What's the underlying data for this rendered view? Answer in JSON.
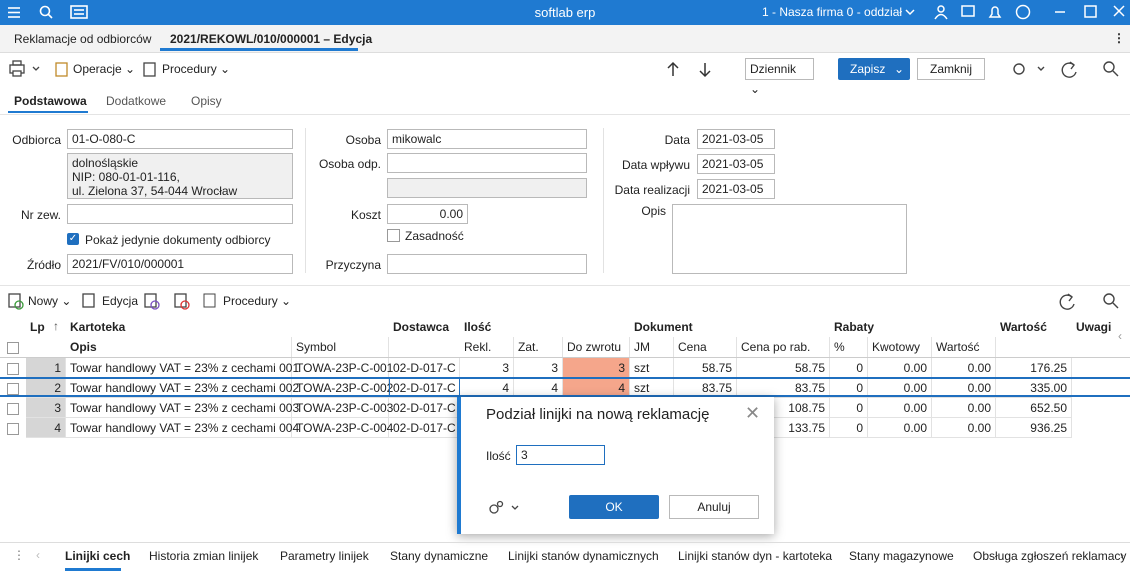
{
  "titlebar": {
    "app": "softlab erp",
    "company": "1 - Nasza firma 0 - oddział"
  },
  "doc_tabs": [
    "Reklamacje od odbiorców",
    "2021/REKOWL/010/000001 – Edycja"
  ],
  "toolbar": {
    "operations": "Operacje",
    "procedures": "Procedury",
    "journal": "Dziennik",
    "save": "Zapisz",
    "close": "Zamknij"
  },
  "form_tabs": [
    "Podstawowa",
    "Dodatkowe",
    "Opisy"
  ],
  "form": {
    "recipient_label": "Odbiorca",
    "recipient": "01-O-080-C",
    "address": [
      "dolnośląskie",
      "NIP: 080-01-01-116,",
      "ul. Zielona 37, 54-044 Wrocław"
    ],
    "ext_no_label": "Nr zew.",
    "only_docs": "Pokaż jedynie dokumenty odbiorcy",
    "source_label": "Źródło",
    "source": "2021/FV/010/000001",
    "person_label": "Osoba",
    "person": "mikowalc",
    "person_resp_label": "Osoba odp.",
    "cost_label": "Koszt",
    "cost": "0.00",
    "valid_label": "Zasadność",
    "reason_label": "Przyczyna",
    "date_label": "Data",
    "date": "2021-03-05",
    "date_received_label": "Data wpływu",
    "date_received": "2021-03-05",
    "date_done_label": "Data realizacji",
    "date_done": "2021-03-05",
    "description_label": "Opis"
  },
  "grid_toolbar": {
    "new": "Nowy",
    "edit": "Edycja",
    "procedures": "Procedury"
  },
  "table": {
    "header_top": [
      "Lp",
      "Kartoteka",
      "Dostawca",
      "Ilość",
      "Dokument",
      "Rabaty",
      "Wartość",
      "Uwagi"
    ],
    "header": [
      "Opis",
      "Symbol",
      "Rekl.",
      "Zat.",
      "Do zwrotu",
      "JM",
      "Cena",
      "Cena po rab.",
      "%",
      "Kwotowy",
      "Wartość"
    ],
    "rows": [
      [
        "1",
        "Towar handlowy VAT = 23% z cechami 001",
        "TOWA-23P-C-001",
        "02-D-017-C",
        "3",
        "3",
        "3",
        "szt",
        "58.75",
        "58.75",
        "0",
        "0.00",
        "0.00",
        "176.25"
      ],
      [
        "2",
        "Towar handlowy VAT = 23% z cechami 002",
        "TOWA-23P-C-002",
        "02-D-017-C",
        "4",
        "4",
        "4",
        "szt",
        "83.75",
        "83.75",
        "0",
        "0.00",
        "0.00",
        "335.00"
      ],
      [
        "3",
        "Towar handlowy VAT = 23% z cechami 003",
        "TOWA-23P-C-003",
        "02-D-017-C",
        null,
        null,
        null,
        null,
        null,
        "108.75",
        "0",
        "0.00",
        "0.00",
        "652.50"
      ],
      [
        "4",
        "Towar handlowy VAT = 23% z cechami 004",
        "TOWA-23P-C-004",
        "02-D-017-C",
        null,
        null,
        null,
        null,
        null,
        "133.75",
        "0",
        "0.00",
        "0.00",
        "936.25"
      ]
    ]
  },
  "dialog": {
    "title": "Podział linijki na nową reklamację",
    "qty_label": "Ilość",
    "qty": "3",
    "ok": "OK",
    "cancel": "Anuluj"
  },
  "bottom_tabs": [
    "Linijki cech",
    "Historia zmian linijek",
    "Parametry linijek",
    "Stany dynamiczne",
    "Linijki stanów dynamicznych",
    "Linijki stanów dyn - kartoteka",
    "Stany magazynowe",
    "Obsługa zgłoszeń reklamacy"
  ]
}
